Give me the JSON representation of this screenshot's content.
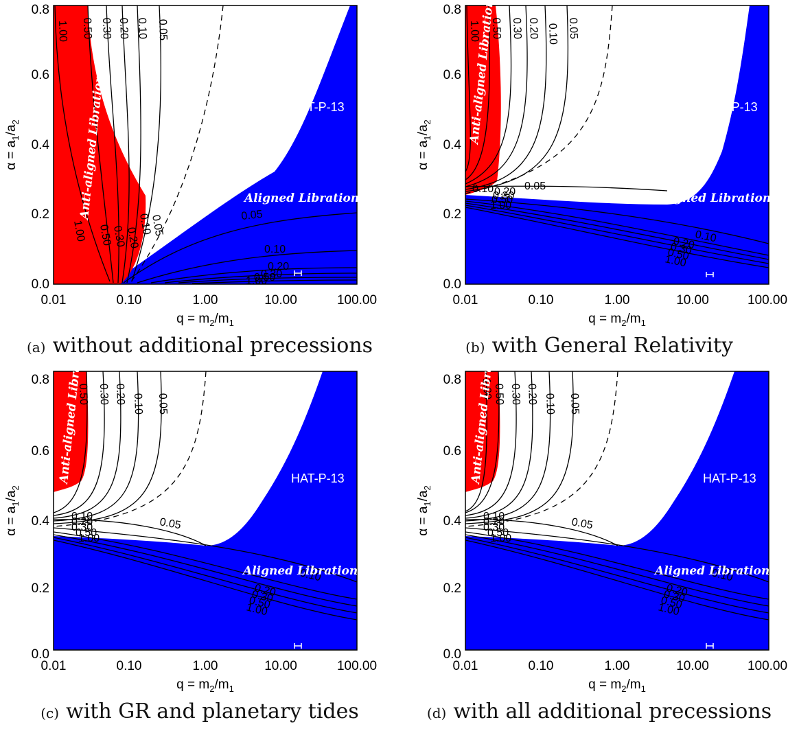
{
  "chart_data": [
    {
      "type": "contour",
      "panel_tag": "(a)",
      "caption": "without additional precessions",
      "xlabel": "q = m",
      "xlabel_sub2": "2",
      "xlabel_mid": "/m",
      "xlabel_sub1": "1",
      "ylabel": "α = a",
      "ylabel_sub1": "1",
      "ylabel_mid": "/a",
      "ylabel_sub2": "2",
      "x_scale": "log",
      "xlim": [
        0.01,
        100
      ],
      "ylim": [
        0,
        0.8
      ],
      "x_ticks": [
        "0.01",
        "0.10",
        "1.00",
        "10.00",
        "100.00"
      ],
      "y_ticks": [
        "0.0",
        "0.2",
        "0.4",
        "0.6",
        "0.8"
      ],
      "regions": [
        {
          "label": "Anti-aligned Libration",
          "color": "#ff0000"
        },
        {
          "label": "Aligned Libration",
          "color": "#0000ff"
        }
      ],
      "system_label": "HAT-P-13",
      "contour_labels": [
        "1.00",
        "0.50",
        "0.30",
        "0.20",
        "0.10",
        "0.05",
        "1.00",
        "0.50",
        "0.30",
        "0.20",
        "0.10",
        "0.05",
        "0.05",
        "0.10",
        "0.20",
        "0.30",
        "0.50",
        "1.00"
      ]
    },
    {
      "type": "contour",
      "panel_tag": "(b)",
      "caption": "with General Relativity",
      "xlabel": "q = m",
      "xlabel_sub2": "2",
      "xlabel_mid": "/m",
      "xlabel_sub1": "1",
      "ylabel": "α = a",
      "ylabel_sub1": "1",
      "ylabel_mid": "/a",
      "ylabel_sub2": "2",
      "x_scale": "log",
      "xlim": [
        0.01,
        100
      ],
      "ylim": [
        0,
        0.8
      ],
      "x_ticks": [
        "0.01",
        "0.10",
        "1.00",
        "10.00",
        "100.00"
      ],
      "y_ticks": [
        "0.0",
        "0.2",
        "0.4",
        "0.6",
        "0.8"
      ],
      "regions": [
        {
          "label": "Anti-aligned Libration",
          "color": "#ff0000"
        },
        {
          "label": "Aligned Libration",
          "color": "#0000ff"
        }
      ],
      "system_label": "HAT-P-13",
      "contour_labels": [
        "1.00",
        "0.50",
        "0.30",
        "0.20",
        "0.10",
        "0.05",
        "0.10",
        "0.05",
        "0.20",
        "0.30",
        "0.50",
        "1.00",
        "0.10",
        "0.20",
        "0.30",
        "0.50",
        "1.00"
      ]
    },
    {
      "type": "contour",
      "panel_tag": "(c)",
      "caption": "with GR and planetary tides",
      "xlabel": "q = m",
      "xlabel_sub2": "2",
      "xlabel_mid": "/m",
      "xlabel_sub1": "1",
      "ylabel": "α = a",
      "ylabel_sub1": "1",
      "ylabel_mid": "/a",
      "ylabel_sub2": "2",
      "x_scale": "log",
      "xlim": [
        0.01,
        100
      ],
      "ylim": [
        0,
        0.8
      ],
      "x_ticks": [
        "0.01",
        "0.10",
        "1.00",
        "10.00",
        "100.00"
      ],
      "y_ticks": [
        "0.0",
        "0.2",
        "0.4",
        "0.6",
        "0.8"
      ],
      "regions": [
        {
          "label": "Anti-aligned Libration",
          "color": "#ff0000"
        },
        {
          "label": "Aligned Libration",
          "color": "#0000ff"
        }
      ],
      "system_label": "HAT-P-13",
      "contour_labels": [
        "0.50",
        "0.30",
        "0.20",
        "0.10",
        "0.05",
        "0.10",
        "0.20",
        "0.30",
        "0.50",
        "1.00",
        "0.05",
        "0.10",
        "0.20",
        "0.30",
        "0.50",
        "1.00"
      ]
    },
    {
      "type": "contour",
      "panel_tag": "(d)",
      "caption": "with all additional precessions",
      "xlabel": "q = m",
      "xlabel_sub2": "2",
      "xlabel_mid": "/m",
      "xlabel_sub1": "1",
      "ylabel": "α = a",
      "ylabel_sub1": "1",
      "ylabel_mid": "/a",
      "ylabel_sub2": "2",
      "x_scale": "log",
      "xlim": [
        0.01,
        100
      ],
      "ylim": [
        0,
        0.8
      ],
      "x_ticks": [
        "0.01",
        "0.10",
        "1.00",
        "10.00",
        "100.00"
      ],
      "y_ticks": [
        "0.0",
        "0.2",
        "0.4",
        "0.6",
        "0.8"
      ],
      "regions": [
        {
          "label": "Anti-aligned Libration",
          "color": "#ff0000"
        },
        {
          "label": "Aligned Libration",
          "color": "#0000ff"
        }
      ],
      "system_label": "HAT-P-13",
      "contour_labels": [
        "1.00",
        "0.50",
        "0.30",
        "0.20",
        "0.10",
        "0.05",
        "0.10",
        "0.20",
        "0.30",
        "0.50",
        "1.00",
        "0.05",
        "0.10",
        "0.20",
        "0.30",
        "0.50",
        "1.00"
      ]
    }
  ]
}
